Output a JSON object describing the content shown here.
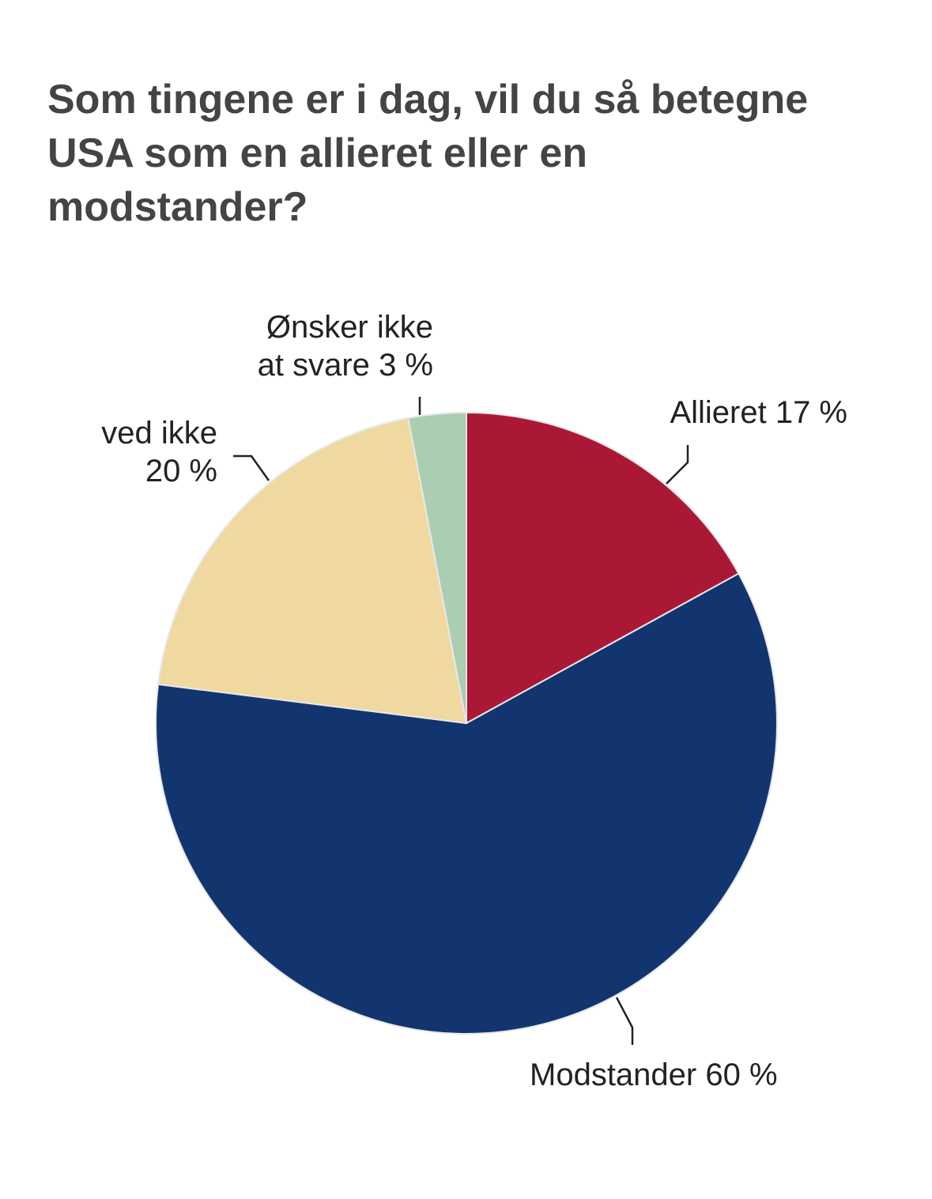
{
  "chart_data": {
    "type": "pie",
    "title": "Som tingene er i dag, vil du så betegne USA som en allieret eller en modstander?",
    "categories": [
      "Allieret",
      "Modstander",
      "ved ikke",
      "Ønsker ikke at svare"
    ],
    "values": [
      17,
      60,
      20,
      3
    ],
    "value_labels": [
      "17 %",
      "60 %",
      "20 %",
      "3 %"
    ],
    "colors": [
      "#ab1836",
      "#123570",
      "#f0d9a0",
      "#abcdb1"
    ]
  }
}
